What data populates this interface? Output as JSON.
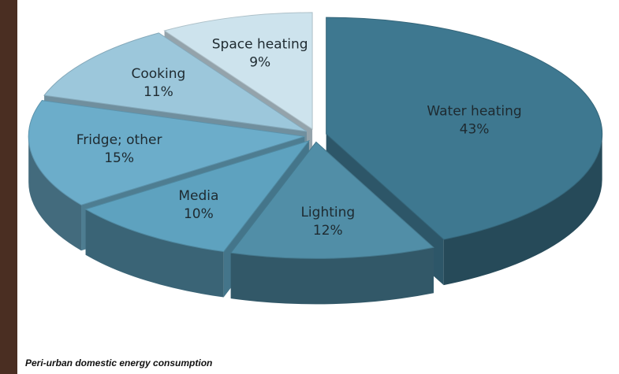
{
  "chart_data": {
    "type": "pie",
    "caption": "Peri-urban domestic energy consumption",
    "categories": [
      "Water heating",
      "Lighting",
      "Media",
      "Fridge; other",
      "Cooking",
      "Space heating"
    ],
    "values": [
      43,
      12,
      10,
      15,
      11,
      9
    ],
    "value_labels": [
      "43%",
      "12%",
      "10%",
      "15%",
      "11%",
      "9%"
    ],
    "colors": [
      "#3e7890",
      "#518ea7",
      "#5ea2bf",
      "#6cadca",
      "#9cc7db",
      "#cde3ed"
    ]
  }
}
